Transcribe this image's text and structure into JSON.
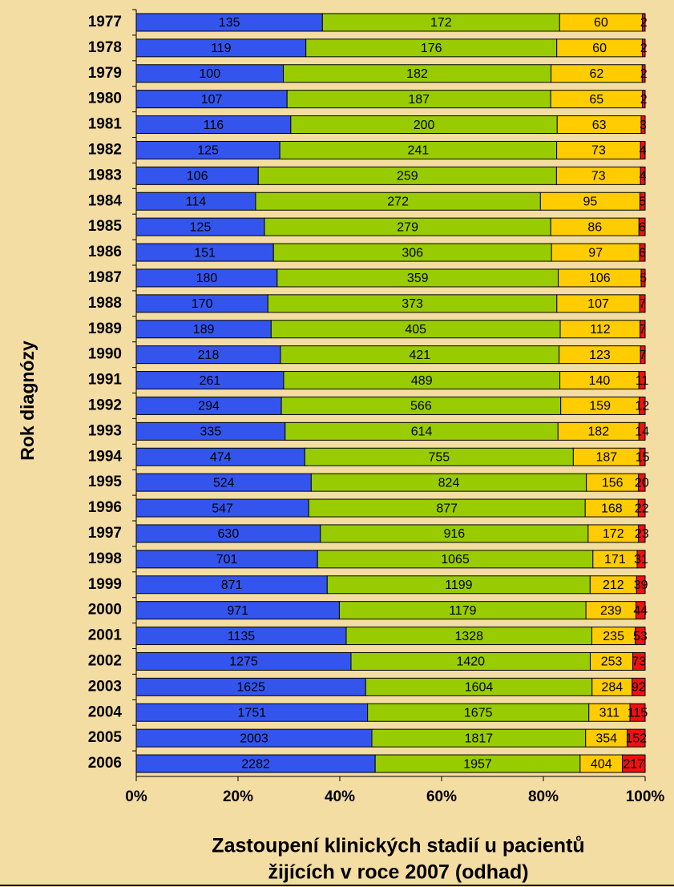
{
  "chart_data": {
    "type": "bar",
    "orientation": "horizontal",
    "stacking": "percent",
    "xlabel": [
      "Zastoupení klinických stadií u pacientů",
      "žijících v roce 2007 (odhad)"
    ],
    "ylabel": "Rok diagnózy",
    "categories": [
      "1977",
      "1978",
      "1979",
      "1980",
      "1981",
      "1982",
      "1983",
      "1984",
      "1985",
      "1986",
      "1987",
      "1988",
      "1989",
      "1990",
      "1991",
      "1992",
      "1993",
      "1994",
      "1995",
      "1996",
      "1997",
      "1998",
      "1999",
      "2000",
      "2001",
      "2002",
      "2003",
      "2004",
      "2005",
      "2006"
    ],
    "series": [
      {
        "color": "#3355ee",
        "values": [
          135,
          119,
          100,
          107,
          116,
          125,
          106,
          114,
          125,
          151,
          180,
          170,
          189,
          218,
          261,
          294,
          335,
          474,
          524,
          547,
          630,
          701,
          871,
          971,
          1135,
          1275,
          1625,
          1751,
          2003,
          2282
        ]
      },
      {
        "color": "#99cc00",
        "values": [
          172,
          176,
          182,
          187,
          200,
          241,
          259,
          272,
          279,
          306,
          359,
          373,
          405,
          421,
          489,
          566,
          614,
          755,
          824,
          877,
          916,
          1065,
          1199,
          1179,
          1328,
          1420,
          1604,
          1675,
          1817,
          1957
        ]
      },
      {
        "color": "#ffcc00",
        "values": [
          60,
          60,
          62,
          65,
          63,
          73,
          73,
          95,
          86,
          97,
          106,
          107,
          112,
          123,
          140,
          159,
          182,
          187,
          156,
          168,
          172,
          171,
          212,
          239,
          235,
          253,
          284,
          311,
          354,
          404
        ]
      },
      {
        "color": "#ee1111",
        "values": [
          2,
          2,
          2,
          2,
          3,
          4,
          4,
          5,
          6,
          6,
          5,
          7,
          7,
          7,
          11,
          12,
          14,
          15,
          20,
          22,
          23,
          31,
          39,
          44,
          53,
          73,
          92,
          115,
          152,
          217
        ]
      }
    ],
    "xlim": [
      0,
      100
    ],
    "xticks": [
      {
        "value": 0,
        "label": "0%"
      },
      {
        "value": 20,
        "label": "20%"
      },
      {
        "value": 40,
        "label": "40%"
      },
      {
        "value": 60,
        "label": "60%"
      },
      {
        "value": 80,
        "label": "80%"
      },
      {
        "value": 100,
        "label": "100%"
      }
    ]
  }
}
